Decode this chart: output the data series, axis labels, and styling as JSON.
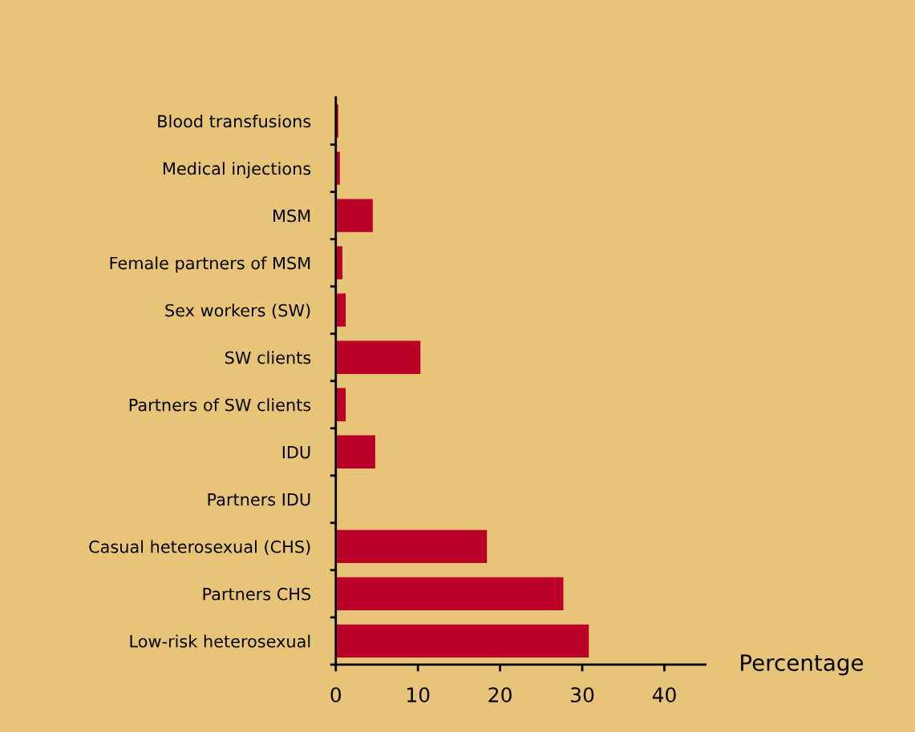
{
  "chart_data": {
    "type": "bar",
    "orientation": "horizontal",
    "xlabel": "Percentage",
    "categories": [
      "Blood transfusions",
      "Medical injections",
      "MSM",
      "Female partners of MSM",
      "Sex workers (SW)",
      "SW clients",
      "Partners of SW clients",
      "IDU",
      "Partners IDU",
      "Casual heterosexual (CHS)",
      "Partners CHS",
      "Low-risk heterosexual"
    ],
    "values": [
      0.3,
      0.5,
      4.5,
      0.8,
      1.2,
      10.3,
      1.2,
      4.8,
      0,
      18.4,
      27.7,
      30.8
    ],
    "color": "#bb0027",
    "xlim": [
      0,
      45
    ],
    "xticks": [
      0,
      10,
      20,
      30,
      40
    ],
    "grid": false,
    "legend": false
  }
}
